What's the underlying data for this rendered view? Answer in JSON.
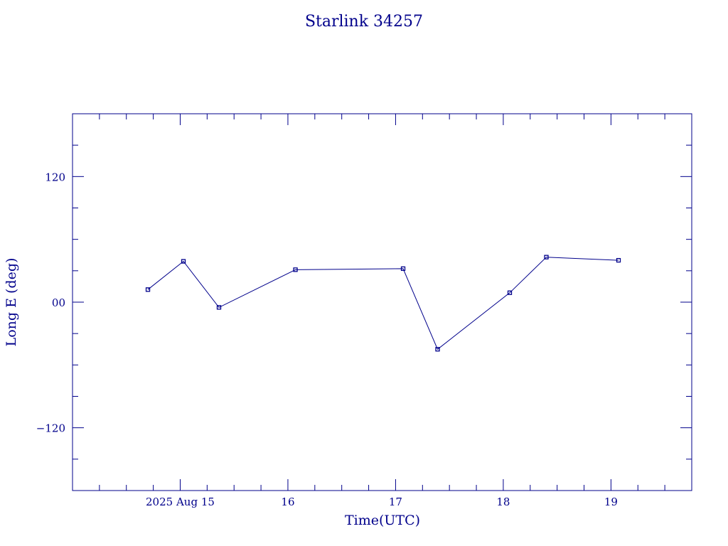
{
  "chart_data": {
    "type": "line",
    "title": "Starlink 34257",
    "xlabel": "Time(UTC)",
    "ylabel": "Long E (deg)",
    "colors": {
      "axis": "#00008b",
      "series": "#00008b"
    },
    "x_tick_labels": [
      "2025 Aug 15",
      "16",
      "17",
      "18",
      "19"
    ],
    "x_tick_values": [
      15,
      16,
      17,
      18,
      19
    ],
    "y_tick_labels": [
      "120",
      "00",
      "−120"
    ],
    "y_tick_values": [
      120,
      0,
      -120
    ],
    "xlim": [
      14.0,
      19.75
    ],
    "ylim": [
      -180,
      180
    ],
    "grid": false,
    "series": [
      {
        "marker": "square",
        "x": [
          14.7,
          15.03,
          15.36,
          16.07,
          17.07,
          17.39,
          18.06,
          18.4,
          19.07
        ],
        "y": [
          12,
          39,
          -5,
          31,
          32,
          -45,
          9,
          43,
          40
        ]
      }
    ]
  }
}
